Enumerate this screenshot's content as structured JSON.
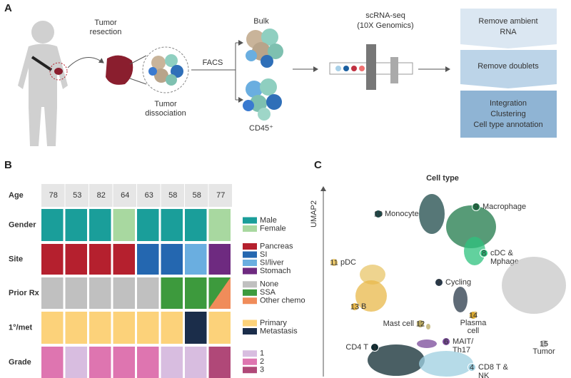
{
  "panel_a": {
    "label": "A",
    "resection": [
      "Tumor",
      "resection"
    ],
    "dissociation": [
      "Tumor",
      "dissociation"
    ],
    "facs": "FACS",
    "bulk": "Bulk",
    "cd45": "CD45⁺",
    "scrna": [
      "scRNA-seq",
      "(10X Genomics)"
    ],
    "steps": [
      [
        "Remove ambient",
        "RNA"
      ],
      [
        "Remove doublets"
      ],
      [
        "Integration",
        "Clustering",
        "Cell type annotation"
      ]
    ]
  },
  "panel_b": {
    "label": "B",
    "rows": [
      {
        "name": "Age",
        "values": [
          78,
          53,
          82,
          64,
          63,
          58,
          58,
          77
        ]
      },
      {
        "name": "Gender",
        "values": [
          "Male",
          "Male",
          "Male",
          "Female",
          "Male",
          "Male",
          "Male",
          "Female"
        ],
        "legend": [
          {
            "label": "Male",
            "color": "#1a9e9a"
          },
          {
            "label": "Female",
            "color": "#a8d8a0"
          }
        ]
      },
      {
        "name": "Site",
        "values": [
          "Pancreas",
          "Pancreas",
          "Pancreas",
          "Pancreas",
          "SI",
          "SI",
          "SI/liver",
          "Stomach"
        ],
        "legend": [
          {
            "label": "Pancreas",
            "color": "#b5202e"
          },
          {
            "label": "SI",
            "color": "#2467b0"
          },
          {
            "label": "SI/liver",
            "color": "#6aaee0"
          },
          {
            "label": "Stomach",
            "color": "#6e2a80"
          }
        ]
      },
      {
        "name": "Prior Rx",
        "values": [
          "None",
          "None",
          "None",
          "None",
          "None",
          "SSA",
          "SSA",
          [
            "SSA",
            "Other chemo"
          ]
        ],
        "legend": [
          {
            "label": "None",
            "color": "#c0c0c0"
          },
          {
            "label": "SSA",
            "color": "#3d9a3d"
          },
          {
            "label": "Other chemo",
            "color": "#f08c5a"
          }
        ]
      },
      {
        "name": "1°/met",
        "values": [
          "Primary",
          "Primary",
          "Primary",
          "Primary",
          "Primary",
          "Primary",
          "Metastasis",
          "Primary"
        ],
        "legend": [
          {
            "label": "Primary",
            "color": "#fcd27a"
          },
          {
            "label": "Metastasis",
            "color": "#1b2d4a"
          }
        ]
      },
      {
        "name": "Grade",
        "values": [
          2,
          1,
          2,
          2,
          2,
          1,
          1,
          3
        ],
        "legend": [
          {
            "label": 1,
            "color": "#d8bde0"
          },
          {
            "label": 2,
            "color": "#de75b0"
          },
          {
            "label": 3,
            "color": "#b04878"
          }
        ]
      }
    ]
  },
  "panel_c": {
    "label": "C",
    "title": "Cell type",
    "y_axis": "UMAP2",
    "clusters": [
      {
        "name": [
          "Monocyte"
        ],
        "id": 10,
        "color": "#1d4a4a"
      },
      {
        "name": [
          "Macrophage"
        ],
        "id": 9,
        "color": "#1f7a4a"
      },
      {
        "name": [
          "cDC &",
          "Mphage"
        ],
        "id": 8,
        "color": "#2ec27e"
      },
      {
        "name": [
          "pDC"
        ],
        "id": 11,
        "color": "#e8c66a"
      },
      {
        "name": [
          "Cycling"
        ],
        "id": 7,
        "color": "#2a3a4a"
      },
      {
        "name": [
          "B"
        ],
        "id": 13,
        "color": "#e8b84a"
      },
      {
        "name": [
          "Plasma",
          "cell"
        ],
        "id": 14,
        "color": "#d8a830"
      },
      {
        "name": [
          "Mast cell"
        ],
        "id": 12,
        "color": "#b8a860"
      },
      {
        "name": [
          "MAIT/",
          "Th17"
        ],
        "id": 6,
        "color": "#7a4a9a"
      },
      {
        "name": [
          "CD4 T"
        ],
        "id": 1,
        "color": "#0e2a30"
      },
      {
        "name": [
          "CD8 T &",
          "NK"
        ],
        "id": 4,
        "color": "#9ecfe0"
      },
      {
        "name": [
          "Tumor"
        ],
        "id": 15,
        "color": "#c8c8c8"
      }
    ]
  }
}
